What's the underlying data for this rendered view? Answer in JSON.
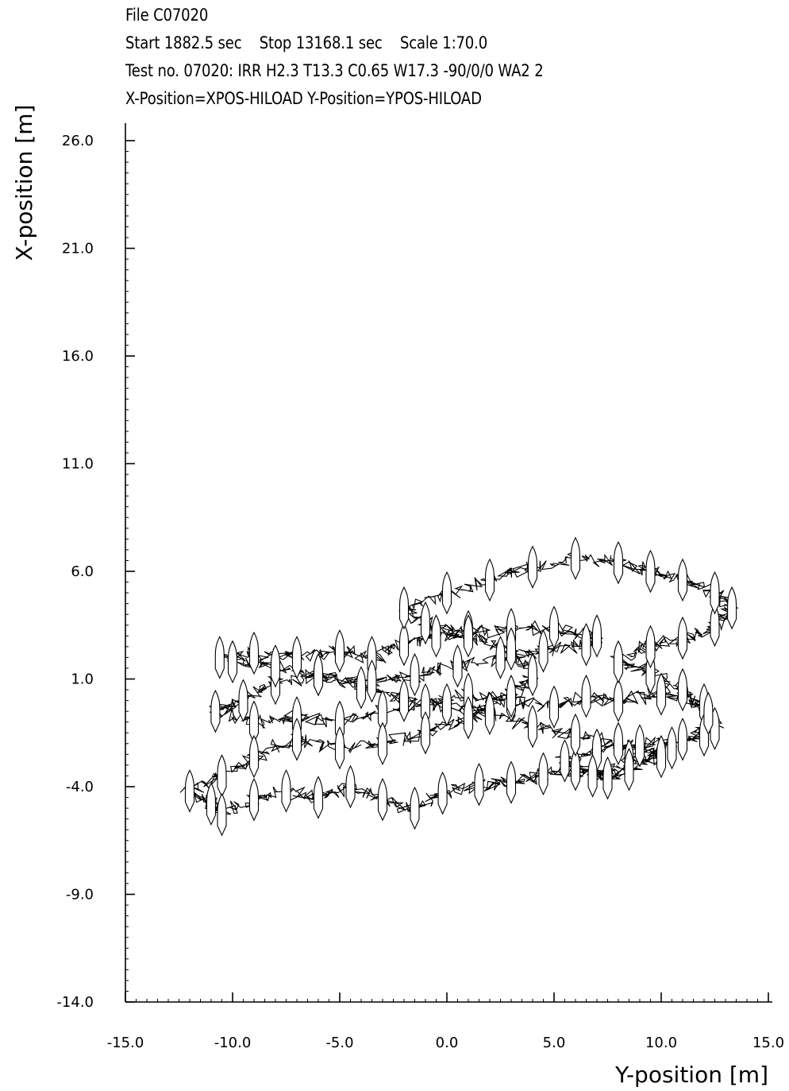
{
  "header": {
    "file": "File C07020",
    "run": "Start 1882.5 sec    Stop 13168.1 sec    Scale 1:70.0",
    "test": "Test no. 07020: IRR H2.3 T13.3 C0.65 W17.3 -90/0/0 WA2 2",
    "positions": "X-Position=XPOS-HILOAD Y-Position=YPOS-HILOAD"
  },
  "chart_data": {
    "type": "line",
    "title": "File C07020",
    "xlabel": "Y-position [m]",
    "ylabel": "X-position [m]",
    "xlim": [
      -15.0,
      15.0
    ],
    "ylim": [
      -14.0,
      26.0
    ],
    "x_ticks": [
      "-15.0",
      "-10.0",
      "-5.0",
      "0.0",
      "5.0",
      "10.0",
      "15.0"
    ],
    "y_ticks": [
      "-14.0",
      "-9.0",
      "-4.0",
      "1.0",
      "6.0",
      "11.0",
      "16.0",
      "21.0",
      "26.0"
    ],
    "grid": false,
    "legend": "none",
    "series": [
      {
        "points": [
          [
            -10.6,
            2.0
          ],
          [
            -9.0,
            2.2
          ],
          [
            -7.0,
            2.0
          ],
          [
            -5.0,
            2.3
          ],
          [
            -3.5,
            2.0
          ],
          [
            -2.0,
            2.6
          ],
          [
            -0.5,
            3.0
          ],
          [
            1.0,
            3.2
          ],
          [
            3.0,
            3.3
          ],
          [
            5.0,
            3.4
          ],
          [
            7.0,
            3.0
          ],
          [
            6.5,
            2.6
          ],
          [
            4.5,
            2.3
          ],
          [
            2.5,
            2.0
          ],
          [
            0.5,
            1.6
          ],
          [
            -1.5,
            1.2
          ],
          [
            -3.5,
            0.9
          ],
          [
            -6.0,
            1.2
          ],
          [
            -8.0,
            0.8
          ],
          [
            -9.5,
            0.0
          ],
          [
            -10.8,
            -0.5
          ],
          [
            -9.0,
            -1.0
          ],
          [
            -7.0,
            -0.8
          ],
          [
            -5.0,
            -1.0
          ],
          [
            -3.0,
            -0.5
          ],
          [
            -1.0,
            -0.2
          ],
          [
            1.0,
            0.3
          ],
          [
            3.0,
            0.0
          ],
          [
            5.0,
            -0.3
          ],
          [
            6.5,
            0.2
          ],
          [
            8.0,
            0.0
          ],
          [
            10.0,
            0.3
          ],
          [
            12.0,
            -0.2
          ],
          [
            12.5,
            -1.3
          ],
          [
            11.0,
            -1.8
          ],
          [
            9.0,
            -2.1
          ],
          [
            7.0,
            -2.3
          ],
          [
            5.5,
            -2.8
          ],
          [
            6.8,
            -3.5
          ],
          [
            8.5,
            -2.8
          ],
          [
            10.5,
            -2.2
          ],
          [
            12.0,
            -1.6
          ],
          [
            12.2,
            -0.6
          ],
          [
            11.0,
            0.5
          ],
          [
            9.5,
            1.3
          ],
          [
            8.0,
            1.8
          ],
          [
            9.5,
            2.5
          ],
          [
            11.0,
            2.9
          ],
          [
            12.5,
            3.5
          ],
          [
            13.3,
            4.3
          ],
          [
            12.5,
            5.0
          ],
          [
            11.0,
            5.6
          ],
          [
            9.5,
            6.0
          ],
          [
            8.0,
            6.4
          ],
          [
            6.0,
            6.6
          ],
          [
            4.0,
            6.2
          ],
          [
            2.0,
            5.6
          ],
          [
            0.0,
            5.0
          ],
          [
            -2.0,
            4.3
          ],
          [
            -1.0,
            3.6
          ],
          [
            1.0,
            3.0
          ],
          [
            3.0,
            2.4
          ],
          [
            4.0,
            1.2
          ],
          [
            3.0,
            0.2
          ],
          [
            1.0,
            -0.8
          ],
          [
            -1.0,
            -1.5
          ],
          [
            -3.0,
            -2.0
          ],
          [
            -5.0,
            -2.2
          ],
          [
            -7.0,
            -1.8
          ],
          [
            -9.0,
            -2.6
          ],
          [
            -10.5,
            -3.5
          ],
          [
            -12.0,
            -4.2
          ],
          [
            -11.0,
            -4.8
          ],
          [
            -10.5,
            -5.3
          ],
          [
            -9.0,
            -4.6
          ],
          [
            -7.5,
            -4.2
          ],
          [
            -6.0,
            -4.5
          ],
          [
            -4.5,
            -4.0
          ],
          [
            -3.0,
            -4.6
          ],
          [
            -1.5,
            -5.0
          ],
          [
            -0.2,
            -4.3
          ],
          [
            1.5,
            -3.9
          ],
          [
            3.0,
            -3.8
          ],
          [
            4.5,
            -3.4
          ],
          [
            6.0,
            -3.2
          ],
          [
            7.5,
            -3.6
          ],
          [
            8.5,
            -3.2
          ],
          [
            10.0,
            -2.6
          ],
          [
            8.0,
            -2.0
          ],
          [
            6.0,
            -1.6
          ],
          [
            4.0,
            -1.2
          ],
          [
            2.0,
            -0.6
          ],
          [
            0.0,
            -0.2
          ],
          [
            -2.0,
            0.0
          ],
          [
            -4.0,
            0.6
          ],
          [
            -6.0,
            1.2
          ],
          [
            -8.0,
            1.6
          ],
          [
            -10.0,
            1.8
          ]
        ]
      }
    ]
  }
}
